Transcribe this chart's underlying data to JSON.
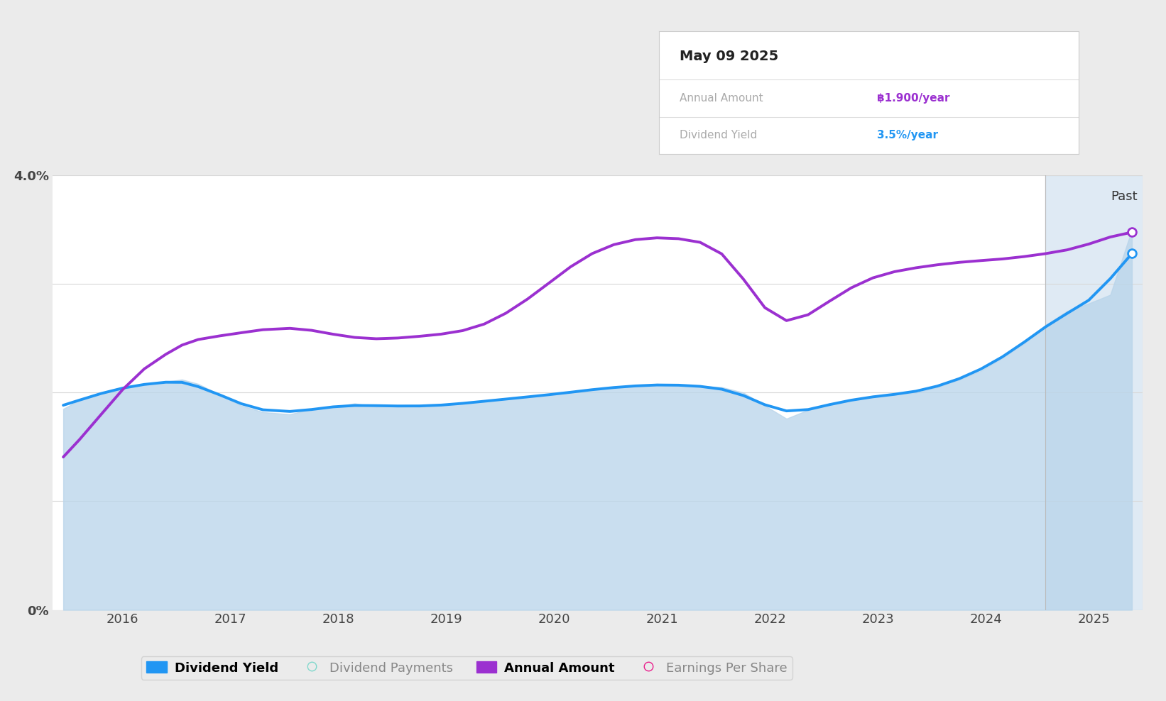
{
  "background_color": "#ebebeb",
  "chart_bg_color": "#ffffff",
  "grid_color": "#d8d8d8",
  "div_yield_color": "#2196F3",
  "annual_amount_color": "#9b30d0",
  "div_yield_fill_top": "#b8d4ea",
  "div_yield_fill_bottom": "#d0e5f5",
  "past_shade_color": "#c5d9ec",
  "past_x": 2024.55,
  "past_label": "Past",
  "tooltip_date": "May 09 2025",
  "tooltip_annual_label": "Annual Amount",
  "tooltip_annual_value": "฿1.900/year",
  "tooltip_yield_label": "Dividend Yield",
  "tooltip_yield_value": "3.5%/year",
  "tooltip_annual_color": "#9b30d0",
  "tooltip_yield_color": "#2196F3",
  "legend_items": [
    {
      "label": "Dividend Yield",
      "color": "#2196F3",
      "filled": true
    },
    {
      "label": "Dividend Payments",
      "color": "#80d8cc",
      "filled": false
    },
    {
      "label": "Annual Amount",
      "color": "#9b30d0",
      "filled": true
    },
    {
      "label": "Earnings Per Share",
      "color": "#e91e8c",
      "filled": false
    }
  ],
  "ylim": [
    0.0,
    4.0
  ],
  "xlim": [
    2015.35,
    2025.45
  ],
  "xlabel_ticks": [
    2016,
    2017,
    2018,
    2019,
    2020,
    2021,
    2022,
    2023,
    2024,
    2025
  ],
  "div_yield_x": [
    2015.45,
    2015.6,
    2015.8,
    2016.0,
    2016.2,
    2016.4,
    2016.55,
    2016.7,
    2016.9,
    2017.1,
    2017.3,
    2017.55,
    2017.75,
    2017.95,
    2018.15,
    2018.35,
    2018.55,
    2018.75,
    2018.95,
    2019.15,
    2019.35,
    2019.55,
    2019.75,
    2019.95,
    2020.15,
    2020.35,
    2020.55,
    2020.75,
    2020.95,
    2021.15,
    2021.35,
    2021.55,
    2021.75,
    2021.95,
    2022.15,
    2022.35,
    2022.55,
    2022.75,
    2022.95,
    2023.15,
    2023.35,
    2023.55,
    2023.75,
    2023.95,
    2024.15,
    2024.35,
    2024.55,
    2024.75,
    2024.95,
    2025.15,
    2025.35
  ],
  "div_yield_y": [
    1.85,
    1.93,
    2.0,
    2.05,
    2.08,
    2.1,
    2.12,
    2.08,
    1.98,
    1.88,
    1.82,
    1.8,
    1.85,
    1.87,
    1.9,
    1.87,
    1.88,
    1.87,
    1.88,
    1.9,
    1.92,
    1.94,
    1.96,
    1.98,
    2.0,
    2.03,
    2.05,
    2.06,
    2.08,
    2.07,
    2.06,
    2.05,
    2.0,
    1.88,
    1.76,
    1.84,
    1.9,
    1.93,
    1.97,
    1.98,
    2.0,
    2.05,
    2.12,
    2.2,
    2.32,
    2.45,
    2.62,
    2.75,
    2.82,
    2.9,
    3.5
  ],
  "annual_x": [
    2015.45,
    2015.6,
    2015.8,
    2016.0,
    2016.2,
    2016.4,
    2016.55,
    2016.7,
    2016.9,
    2017.1,
    2017.3,
    2017.55,
    2017.75,
    2017.95,
    2018.15,
    2018.35,
    2018.55,
    2018.75,
    2018.95,
    2019.15,
    2019.35,
    2019.55,
    2019.75,
    2019.95,
    2020.15,
    2020.35,
    2020.55,
    2020.75,
    2020.95,
    2021.15,
    2021.35,
    2021.55,
    2021.75,
    2021.95,
    2022.15,
    2022.35,
    2022.55,
    2022.75,
    2022.95,
    2023.15,
    2023.35,
    2023.55,
    2023.75,
    2023.95,
    2024.15,
    2024.35,
    2024.55,
    2024.75,
    2024.95,
    2025.15,
    2025.35
  ],
  "annual_y": [
    1.3,
    1.55,
    1.8,
    2.05,
    2.25,
    2.38,
    2.45,
    2.5,
    2.52,
    2.55,
    2.58,
    2.62,
    2.58,
    2.53,
    2.5,
    2.48,
    2.5,
    2.52,
    2.53,
    2.56,
    2.6,
    2.72,
    2.85,
    3.0,
    3.18,
    3.3,
    3.38,
    3.42,
    3.44,
    3.42,
    3.4,
    3.38,
    3.1,
    2.65,
    2.55,
    2.7,
    2.85,
    2.98,
    3.08,
    3.12,
    3.15,
    3.18,
    3.2,
    3.22,
    3.22,
    3.25,
    3.28,
    3.3,
    3.35,
    3.45,
    3.5
  ]
}
